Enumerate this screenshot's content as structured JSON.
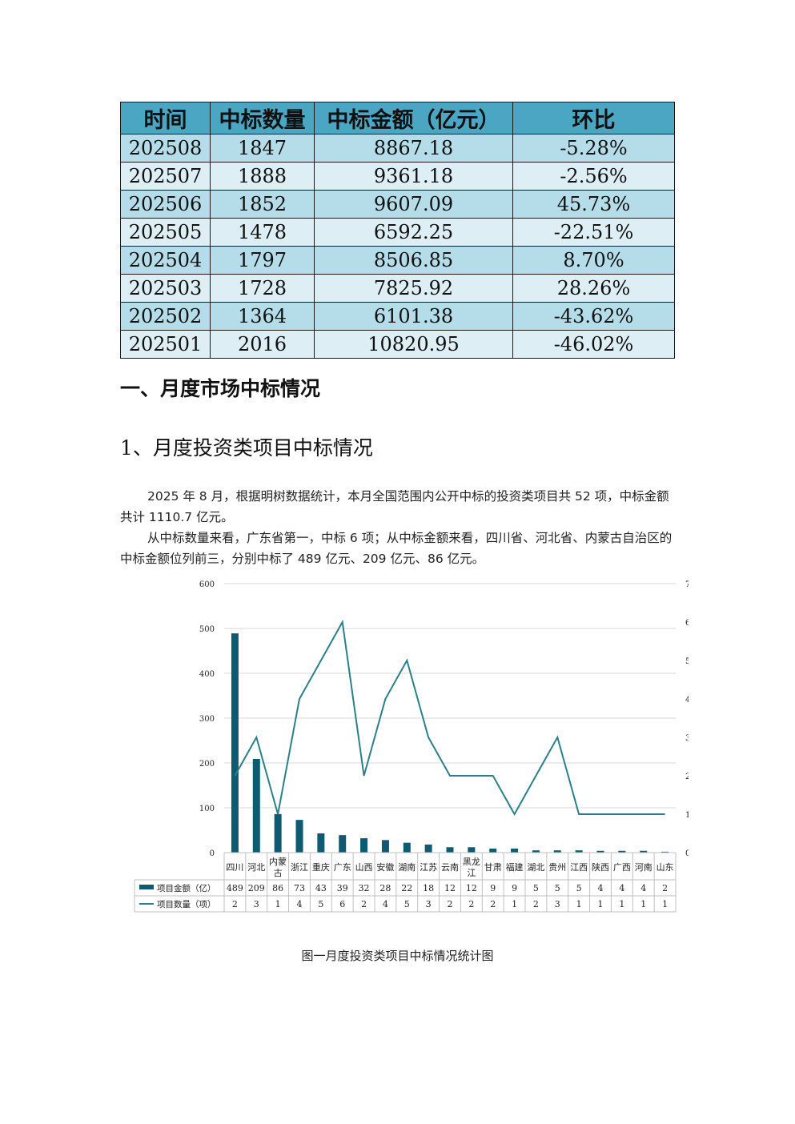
{
  "table": {
    "headers": [
      "时间",
      "中标数量",
      "中标金额（亿元）",
      "环比"
    ],
    "rows": [
      [
        "202508",
        "1847",
        "8867.18",
        "-5.28%"
      ],
      [
        "202507",
        "1888",
        "9361.18",
        "-2.56%"
      ],
      [
        "202506",
        "1852",
        "9607.09",
        "45.73%"
      ],
      [
        "202505",
        "1478",
        "6592.25",
        "-22.51%"
      ],
      [
        "202504",
        "1797",
        "8506.85",
        "8.70%"
      ],
      [
        "202503",
        "1728",
        "7825.92",
        "28.26%"
      ],
      [
        "202502",
        "1364",
        "6101.38",
        "-43.62%"
      ],
      [
        "202501",
        "2016",
        "10820.95",
        "-46.02%"
      ]
    ]
  },
  "section_heading": "一、月度市场中标情况",
  "subsection_heading": "1、月度投资类项目中标情况",
  "paragraphs": [
    "2025 年 8 月，根据明树数据统计，本月全国范围内公开中标的投资类项目共 52 项，中标金额共计 1110.7 亿元。",
    "从中标数量来看，广东省第一，中标 6 项；从中标金额来看，四川省、河北省、内蒙古自治区的中标金额位列前三，分别中标了 489 亿元、209 亿元、86 亿元。"
  ],
  "caption": "图一月度投资类项目中标情况统计图",
  "colors": {
    "header": "#4ba6c4",
    "row_dark": "#b5dde9",
    "row_light": "#ddeff5",
    "bar": "#0e5a70",
    "line": "#2a8088"
  },
  "chart_data": {
    "type": "bar",
    "categories": [
      "四川",
      "河北",
      "内蒙古",
      "浙江",
      "重庆",
      "广东",
      "山西",
      "安徽",
      "湖南",
      "江苏",
      "云南",
      "黑龙江",
      "甘肃",
      "福建",
      "湖北",
      "贵州",
      "江西",
      "陕西",
      "广西",
      "河南",
      "山东"
    ],
    "series": [
      {
        "name": "项目金额（亿）",
        "type": "bar",
        "axis": "left",
        "values": [
          489,
          209,
          86,
          73,
          43,
          39,
          32,
          28,
          22,
          18,
          12,
          12,
          9,
          9,
          5,
          5,
          5,
          4,
          4,
          4,
          2
        ]
      },
      {
        "name": "项目数量（项）",
        "type": "line",
        "axis": "right",
        "values": [
          2,
          3,
          1,
          4,
          5,
          6,
          2,
          4,
          5,
          3,
          2,
          2,
          2,
          1,
          2,
          3,
          1,
          1,
          1,
          1,
          1
        ]
      }
    ],
    "y_left": {
      "ticks": [
        "0",
        "100",
        "200",
        "300",
        "400",
        "500",
        "600"
      ],
      "lim": [
        0,
        600
      ]
    },
    "y_right": {
      "ticks": [
        "0",
        "1",
        "2",
        "3",
        "4",
        "5",
        "6",
        "7"
      ],
      "lim": [
        0,
        7
      ]
    },
    "legend": "data-table-below",
    "grid": true
  }
}
